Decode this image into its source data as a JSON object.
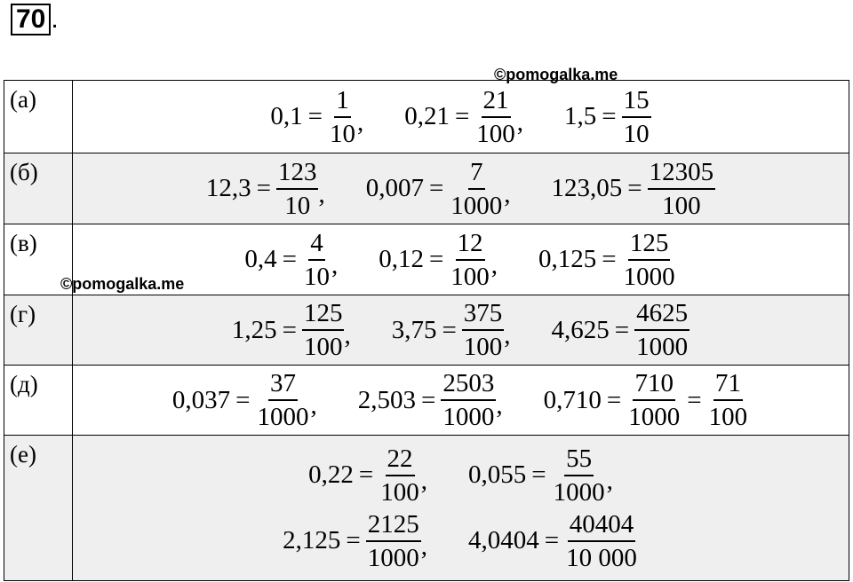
{
  "problem_number": "70",
  "problem_suffix": ".",
  "watermarks": [
    "©pomogalka.me",
    "©pomogalka.me"
  ],
  "rows": [
    {
      "label": "(а)",
      "lines": [
        [
          [
            "0,1",
            "=",
            {
              "num": "1",
              "den": "10"
            },
            ","
          ],
          [
            "0,21",
            "=",
            {
              "num": "21",
              "den": "100"
            },
            ","
          ],
          [
            "1,5",
            "=",
            {
              "num": "15",
              "den": "10"
            }
          ]
        ]
      ]
    },
    {
      "label": "(б)",
      "lines": [
        [
          [
            "12,3",
            "=",
            {
              "num": "123",
              "den": "10"
            },
            ","
          ],
          [
            "0,007",
            "=",
            {
              "num": "7",
              "den": "1000"
            },
            ","
          ],
          [
            "123,05",
            "=",
            {
              "num": "12305",
              "den": "100"
            }
          ]
        ]
      ]
    },
    {
      "label": "(в)",
      "lines": [
        [
          [
            "0,4",
            "=",
            {
              "num": "4",
              "den": "10"
            },
            ","
          ],
          [
            "0,12",
            "=",
            {
              "num": "12",
              "den": "100"
            },
            ","
          ],
          [
            "0,125",
            "=",
            {
              "num": "125",
              "den": "1000"
            }
          ]
        ]
      ]
    },
    {
      "label": "(г)",
      "lines": [
        [
          [
            "1,25",
            "=",
            {
              "num": "125",
              "den": "100"
            },
            ","
          ],
          [
            "3,75",
            "=",
            {
              "num": "375",
              "den": "100"
            },
            ","
          ],
          [
            "4,625",
            "=",
            {
              "num": "4625",
              "den": "1000"
            }
          ]
        ]
      ]
    },
    {
      "label": "(д)",
      "lines": [
        [
          [
            "0,037",
            "=",
            {
              "num": "37",
              "den": "1000"
            },
            ","
          ],
          [
            "2,503",
            "=",
            {
              "num": "2503",
              "den": "1000"
            },
            ","
          ],
          [
            "0,710",
            "=",
            {
              "num": "710",
              "den": "1000"
            },
            "=",
            {
              "num": "71",
              "den": "100"
            }
          ]
        ]
      ]
    },
    {
      "label": "(е)",
      "lines": [
        [
          [
            "0,22",
            "=",
            {
              "num": "22",
              "den": "100"
            },
            ","
          ],
          [
            "0,055",
            "=",
            {
              "num": "55",
              "den": "1000"
            },
            ","
          ]
        ],
        [
          [
            "2,125",
            "=",
            {
              "num": "2125",
              "den": "1000"
            },
            ","
          ],
          [
            "4,0404",
            "=",
            {
              "num": "40404",
              "den": "10 000"
            }
          ]
        ]
      ]
    }
  ]
}
